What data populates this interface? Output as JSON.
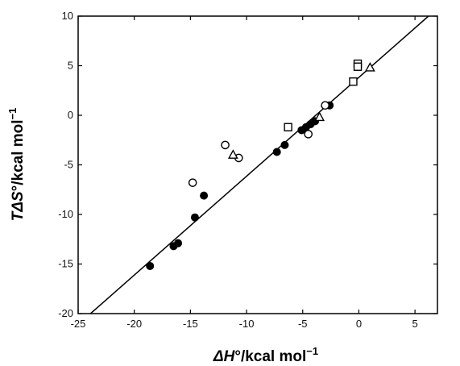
{
  "chart_data": {
    "type": "scatter",
    "xlabel_parts": [
      "ΔH",
      "°/kcal mol",
      "−1"
    ],
    "ylabel_parts": [
      "TΔS",
      "°/kcal mol",
      "−1"
    ],
    "xlim": [
      -25,
      7
    ],
    "ylim": [
      -20,
      10
    ],
    "xticks": [
      "-25",
      "-20",
      "-15",
      "-10",
      "-5",
      "0",
      "5"
    ],
    "yticks": [
      "-20",
      "-15",
      "-10",
      "-5",
      "0",
      "5",
      "10"
    ],
    "xtick_values": [
      -25,
      -20,
      -15,
      -10,
      -5,
      0,
      5
    ],
    "ytick_values": [
      -20,
      -15,
      -10,
      -5,
      0,
      5,
      10
    ],
    "grid": false,
    "legend": "none",
    "fit_line": {
      "x": [
        -23.9,
        6.2
      ],
      "y": [
        -20,
        10
      ]
    },
    "series": [
      {
        "marker": "filled-circle",
        "points": [
          [
            -18.6,
            -15.2
          ],
          [
            -16.5,
            -13.2
          ],
          [
            -16.1,
            -12.9
          ],
          [
            -14.6,
            -10.3
          ],
          [
            -13.8,
            -8.1
          ],
          [
            -7.3,
            -3.7
          ],
          [
            -6.6,
            -3.0
          ],
          [
            -5.1,
            -1.5
          ],
          [
            -4.7,
            -1.2
          ],
          [
            -4.3,
            -0.9
          ],
          [
            -3.9,
            -0.6
          ],
          [
            -2.6,
            1.0
          ]
        ]
      },
      {
        "marker": "open-circle",
        "points": [
          [
            -14.8,
            -6.8
          ],
          [
            -11.9,
            -3.0
          ],
          [
            -10.7,
            -4.3
          ],
          [
            -4.5,
            -1.9
          ],
          [
            -3.0,
            1.0
          ]
        ]
      },
      {
        "marker": "open-square",
        "points": [
          [
            -6.3,
            -1.2
          ],
          [
            -0.5,
            3.4
          ],
          [
            -0.1,
            5.2
          ],
          [
            -0.1,
            4.9
          ]
        ]
      },
      {
        "marker": "open-triangle",
        "points": [
          [
            -11.2,
            -4.0
          ],
          [
            -3.5,
            -0.2
          ],
          [
            1.0,
            4.8
          ]
        ]
      }
    ]
  }
}
